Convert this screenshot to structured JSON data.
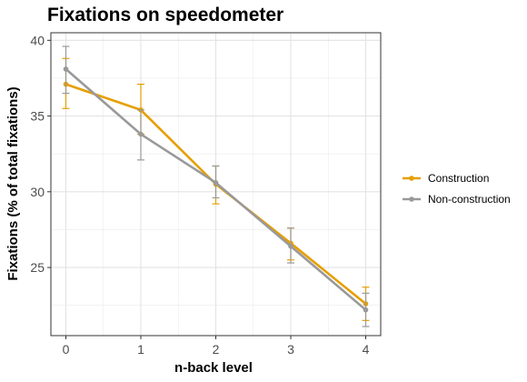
{
  "chart_data": {
    "type": "line",
    "title": "Fixations on speedometer",
    "xlabel": "n-back level",
    "ylabel": "Fixations (% of total fixations)",
    "x": [
      0,
      1,
      2,
      3,
      4
    ],
    "xticks": [
      "0",
      "1",
      "2",
      "3",
      "4"
    ],
    "yticks": [
      25,
      30,
      35,
      40
    ],
    "xlim": [
      -0.2,
      4.2
    ],
    "ylim": [
      20.5,
      40.5
    ],
    "grid": true,
    "legend_position": "right",
    "series": [
      {
        "name": "Construction",
        "color": "#E69F00",
        "values": [
          37.1,
          35.4,
          30.5,
          26.6,
          22.6
        ],
        "error_low": [
          35.5,
          33.8,
          29.2,
          25.5,
          21.5
        ],
        "error_high": [
          38.8,
          37.1,
          31.7,
          27.6,
          23.7
        ]
      },
      {
        "name": "Non-construction",
        "color": "#999999",
        "values": [
          38.1,
          33.8,
          30.6,
          26.4,
          22.2
        ],
        "error_low": [
          36.5,
          32.1,
          29.6,
          25.3,
          21.1
        ],
        "error_high": [
          39.6,
          35.4,
          31.7,
          27.6,
          23.3
        ]
      }
    ]
  }
}
